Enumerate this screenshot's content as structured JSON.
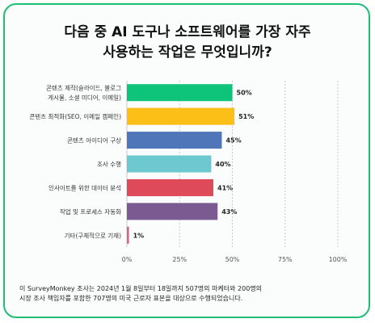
{
  "chart_data": {
    "type": "bar",
    "orientation": "horizontal",
    "title": [
      "다음 중 AI 도구나 소프트웨어를 가장 자주",
      "사용하는 작업은 무엇입니까?"
    ],
    "categories": [
      [
        "콘텐츠 제작(슬라이드, 블로그",
        "게시물, 소셜 미디어, 이메일)"
      ],
      [
        "콘텐츠 최적화(SEO, 이메일 캠페인)"
      ],
      [
        "콘텐츠 아이디어 구상"
      ],
      [
        "조사 수행"
      ],
      [
        "인사이트를 위한 데이터 분석"
      ],
      [
        "작업 및 프로세스 자동화"
      ],
      [
        "기타(구체적으로 기재)"
      ]
    ],
    "values": [
      50,
      51,
      45,
      40,
      41,
      43,
      1
    ],
    "value_labels": [
      "50%",
      "51%",
      "45%",
      "40%",
      "41%",
      "43%",
      "1%"
    ],
    "bar_colors": [
      "#0ec37a",
      "#fcbf18",
      "#4f76b8",
      "#6dc9cf",
      "#df4a5a",
      "#7b5a92",
      "#e05f8f"
    ],
    "xlim": [
      0,
      100
    ],
    "xticks": [
      "0%",
      "25%",
      "50%",
      "75%",
      "100%"
    ],
    "xtick_values": [
      0,
      25,
      50,
      75,
      100
    ],
    "grid": "vertical dashed"
  },
  "footnote": [
    "이 SurveyMonkey 조사는 2024년 1월 8일부터 18일까지 507명의 마케터와 200명의",
    "시장 조사 책임자를 포함한 707명의 미국 근로자 표본을 대상으로 수행되었습니다."
  ],
  "colors": {
    "border": "#1fbf73",
    "grid": "#c9c9c9"
  }
}
